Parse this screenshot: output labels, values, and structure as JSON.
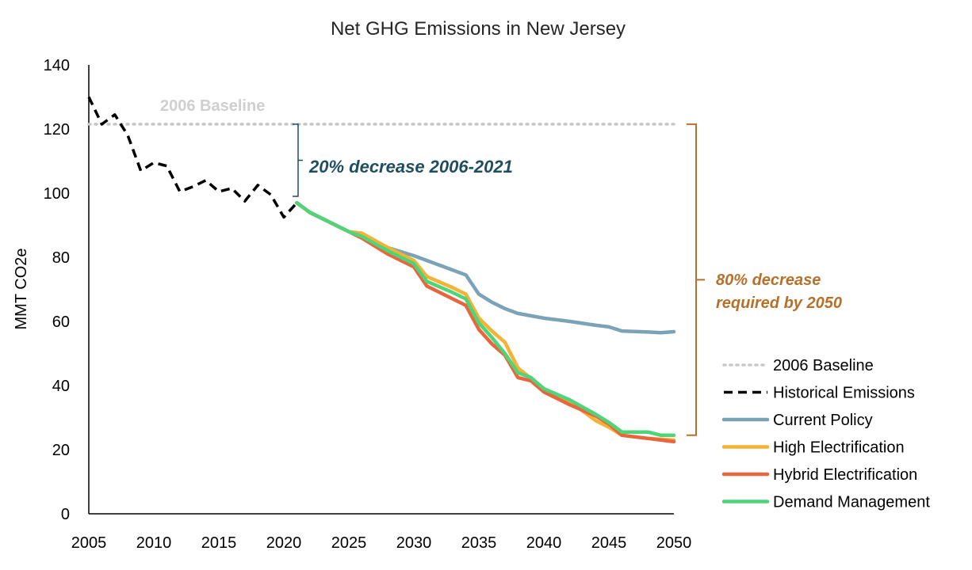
{
  "chart_data": {
    "type": "line",
    "title": "Net GHG Emissions in New Jersey",
    "xlabel": "",
    "ylabel": "MMT CO2e",
    "xlim": [
      2005,
      2050
    ],
    "ylim": [
      0,
      140
    ],
    "x_ticks": [
      "2005",
      "2010",
      "2015",
      "2020",
      "2025",
      "2030",
      "2035",
      "2040",
      "2045",
      "2050"
    ],
    "y_ticks": [
      "0",
      "20",
      "40",
      "60",
      "80",
      "100",
      "120",
      "140"
    ],
    "grid": false,
    "legend_position": "bottom-right",
    "annotations": {
      "baseline_label": "2006 Baseline",
      "decrease_2021": "20% decrease 2006-2021",
      "decrease_2050_line1": "80% decrease",
      "decrease_2050_line2": "required by 2050"
    },
    "series": [
      {
        "name": "2006 Baseline",
        "color": "#c8c8c8",
        "style": "dotted",
        "x": [
          2005,
          2050
        ],
        "y": [
          121.5,
          121.5
        ]
      },
      {
        "name": "Historical Emissions",
        "color": "#000000",
        "style": "dashed",
        "x": [
          2005,
          2006,
          2007,
          2008,
          2009,
          2010,
          2011,
          2012,
          2013,
          2014,
          2015,
          2016,
          2017,
          2018,
          2019,
          2020,
          2021
        ],
        "y": [
          130,
          121.5,
          124.5,
          118,
          107,
          109.5,
          108.5,
          100.5,
          102,
          104,
          100.5,
          101.5,
          97.5,
          102.5,
          99.5,
          92.5,
          97
        ]
      },
      {
        "name": "Current Policy",
        "color": "#7aa3b8",
        "style": "solid",
        "x": [
          2021,
          2022,
          2025,
          2026,
          2028,
          2030,
          2032,
          2034,
          2035,
          2036,
          2037,
          2038,
          2040,
          2042,
          2044,
          2045,
          2046,
          2048,
          2049,
          2050
        ],
        "y": [
          97,
          94,
          88,
          87,
          83,
          80.5,
          77.5,
          74.5,
          68.5,
          66,
          64,
          62.5,
          61,
          60,
          58.8,
          58.3,
          57,
          56.7,
          56.5,
          56.8
        ]
      },
      {
        "name": "High Electrification",
        "color": "#f5b233",
        "style": "solid",
        "x": [
          2021,
          2022,
          2025,
          2026,
          2028,
          2030,
          2031,
          2033,
          2034,
          2035,
          2036,
          2037,
          2038,
          2040,
          2042,
          2044,
          2045,
          2046,
          2048,
          2050
        ],
        "y": [
          97,
          94,
          88,
          87.5,
          83,
          79,
          74,
          70.5,
          68.5,
          61,
          57,
          53.5,
          45.5,
          39,
          35,
          29,
          27,
          24.5,
          23.5,
          23
        ]
      },
      {
        "name": "Hybrid Electrification",
        "color": "#e8663d",
        "style": "solid",
        "x": [
          2021,
          2022,
          2025,
          2026,
          2028,
          2030,
          2031,
          2033,
          2034,
          2035,
          2036,
          2037,
          2038,
          2039,
          2040,
          2042,
          2044,
          2045,
          2046,
          2048,
          2050
        ],
        "y": [
          97,
          94,
          88,
          86,
          81,
          77,
          71,
          67,
          65,
          57.5,
          53,
          49.5,
          42.5,
          41.5,
          38,
          34,
          30.5,
          28,
          24.5,
          23.5,
          22.5
        ]
      },
      {
        "name": "Demand Management",
        "color": "#4fd47a",
        "style": "solid",
        "x": [
          2021,
          2022,
          2025,
          2026,
          2028,
          2030,
          2031,
          2033,
          2034,
          2035,
          2036,
          2037,
          2038,
          2039,
          2040,
          2042,
          2044,
          2045,
          2046,
          2048,
          2049,
          2050
        ],
        "y": [
          97,
          94,
          88,
          86.5,
          82,
          78,
          72.5,
          69,
          67,
          59.5,
          55,
          50,
          44,
          42.5,
          39,
          35.5,
          31,
          28.5,
          25.5,
          25.5,
          24.5,
          24.5
        ]
      }
    ]
  }
}
